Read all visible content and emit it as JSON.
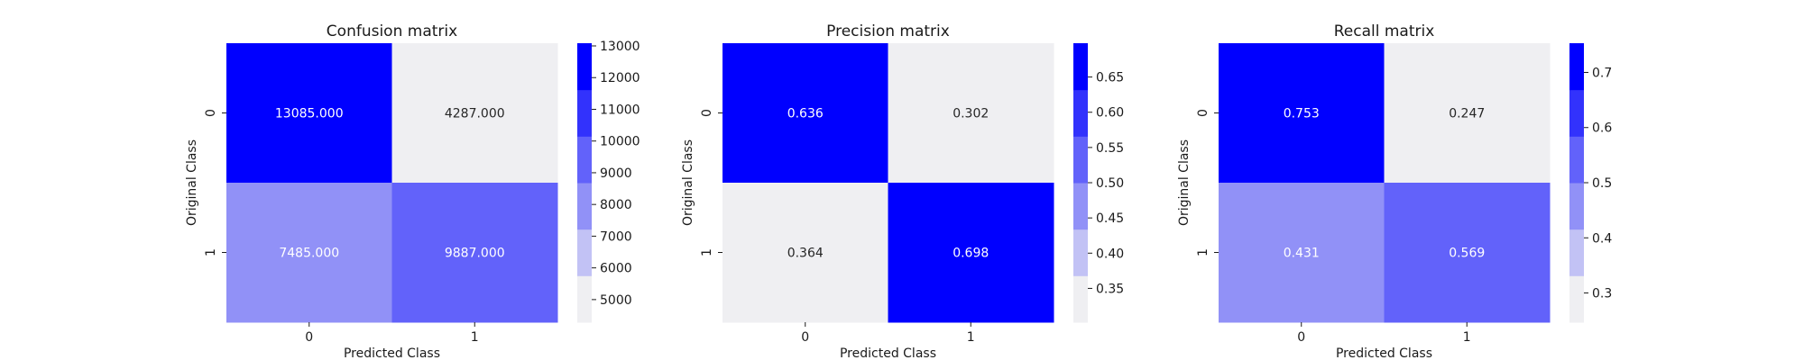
{
  "chart_data": [
    {
      "type": "heatmap",
      "title": "Confusion matrix",
      "xlabel": "Predicted Class",
      "ylabel": "Original Class",
      "x_categories": [
        "0",
        "1"
      ],
      "y_categories": [
        "0",
        "1"
      ],
      "values": [
        [
          13085.0,
          4287.0
        ],
        [
          7485.0,
          9887.0
        ]
      ],
      "cell_labels": [
        [
          "13085.000",
          "4287.000"
        ],
        [
          "7485.000",
          "9887.000"
        ]
      ],
      "colorbar": {
        "range": [
          4287,
          13085
        ],
        "ticks": [
          5000,
          6000,
          7000,
          8000,
          9000,
          10000,
          11000,
          12000,
          13000
        ],
        "tick_labels": [
          "5000",
          "6000",
          "7000",
          "8000",
          "9000",
          "10000",
          "11000",
          "12000",
          "13000"
        ]
      }
    },
    {
      "type": "heatmap",
      "title": "Precision matrix",
      "xlabel": "Predicted Class",
      "ylabel": "Original Class",
      "x_categories": [
        "0",
        "1"
      ],
      "y_categories": [
        "0",
        "1"
      ],
      "values": [
        [
          0.636,
          0.302
        ],
        [
          0.364,
          0.698
        ]
      ],
      "cell_labels": [
        [
          "0.636",
          "0.302"
        ],
        [
          "0.364",
          "0.698"
        ]
      ],
      "colorbar": {
        "range": [
          0.302,
          0.698
        ],
        "ticks": [
          0.35,
          0.4,
          0.45,
          0.5,
          0.55,
          0.6,
          0.65
        ],
        "tick_labels": [
          "0.35",
          "0.40",
          "0.45",
          "0.50",
          "0.55",
          "0.60",
          "0.65"
        ]
      }
    },
    {
      "type": "heatmap",
      "title": "Recall matrix",
      "xlabel": "Predicted Class",
      "ylabel": "Original Class",
      "x_categories": [
        "0",
        "1"
      ],
      "y_categories": [
        "0",
        "1"
      ],
      "values": [
        [
          0.753,
          0.247
        ],
        [
          0.431,
          0.569
        ]
      ],
      "cell_labels": [
        [
          "0.753",
          "0.247"
        ],
        [
          "0.431",
          "0.569"
        ]
      ],
      "colorbar": {
        "range": [
          0.247,
          0.753
        ],
        "ticks": [
          0.3,
          0.4,
          0.5,
          0.6,
          0.7
        ],
        "tick_labels": [
          "0.3",
          "0.4",
          "0.5",
          "0.6",
          "0.7"
        ]
      }
    }
  ],
  "colormap": {
    "steps": 6,
    "colors": [
      "#efeff2",
      "#c2c2f5",
      "#9191f7",
      "#6262fa",
      "#3232fc",
      "#0000ff"
    ],
    "text_light": "#ffffff",
    "text_dark": "#262626"
  }
}
